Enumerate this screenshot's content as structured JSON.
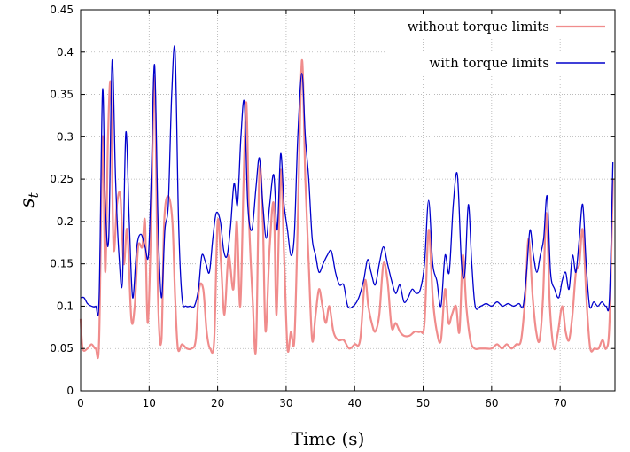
{
  "chart_data": {
    "type": "line",
    "title": "",
    "xlabel": "Time (s)",
    "ylabel": "s_t",
    "xlim": [
      0,
      78
    ],
    "ylim": [
      0,
      0.45
    ],
    "x_ticks": [
      0,
      10,
      20,
      30,
      40,
      50,
      60,
      70
    ],
    "y_ticks": [
      0,
      0.05,
      0.1,
      0.15,
      0.2,
      0.25,
      0.3,
      0.35,
      0.4,
      0.45
    ],
    "x_tick_labels": [
      "0",
      "10",
      "20",
      "30",
      "40",
      "50",
      "60",
      "70"
    ],
    "y_tick_labels": [
      "0",
      "0.05",
      "0.1",
      "0.15",
      "0.2",
      "0.25",
      "0.3",
      "0.35",
      "0.4",
      "0.45"
    ],
    "grid": true,
    "legend_position": "top-right",
    "series": [
      {
        "name": "without torque limits",
        "color": "#f08c8c",
        "points": [
          [
            0,
            0.085
          ],
          [
            0.3,
            0.05
          ],
          [
            1,
            0.05
          ],
          [
            1.6,
            0.055
          ],
          [
            2.2,
            0.05
          ],
          [
            2.7,
            0.06
          ],
          [
            3.2,
            0.3
          ],
          [
            3.6,
            0.14
          ],
          [
            4,
            0.3
          ],
          [
            4.4,
            0.36
          ],
          [
            4.8,
            0.17
          ],
          [
            5.3,
            0.22
          ],
          [
            5.8,
            0.23
          ],
          [
            6.3,
            0.15
          ],
          [
            6.8,
            0.19
          ],
          [
            7.4,
            0.085
          ],
          [
            7.9,
            0.1
          ],
          [
            8.4,
            0.17
          ],
          [
            9,
            0.17
          ],
          [
            9.4,
            0.2
          ],
          [
            9.8,
            0.08
          ],
          [
            10.3,
            0.2
          ],
          [
            10.8,
            0.37
          ],
          [
            11.3,
            0.11
          ],
          [
            11.8,
            0.06
          ],
          [
            12.2,
            0.2
          ],
          [
            12.8,
            0.23
          ],
          [
            13.4,
            0.2
          ],
          [
            13.8,
            0.11
          ],
          [
            14.2,
            0.05
          ],
          [
            14.8,
            0.055
          ],
          [
            15.5,
            0.05
          ],
          [
            16.2,
            0.05
          ],
          [
            16.8,
            0.06
          ],
          [
            17.3,
            0.12
          ],
          [
            17.9,
            0.12
          ],
          [
            18.4,
            0.07
          ],
          [
            18.9,
            0.05
          ],
          [
            19.5,
            0.06
          ],
          [
            20,
            0.2
          ],
          [
            20.5,
            0.15
          ],
          [
            21,
            0.09
          ],
          [
            21.6,
            0.16
          ],
          [
            22.3,
            0.12
          ],
          [
            22.8,
            0.2
          ],
          [
            23.3,
            0.1
          ],
          [
            23.8,
            0.25
          ],
          [
            24.2,
            0.34
          ],
          [
            24.6,
            0.2
          ],
          [
            25.1,
            0.11
          ],
          [
            25.6,
            0.05
          ],
          [
            26.1,
            0.26
          ],
          [
            26.6,
            0.2
          ],
          [
            27,
            0.07
          ],
          [
            27.6,
            0.17
          ],
          [
            28.2,
            0.22
          ],
          [
            28.6,
            0.09
          ],
          [
            29.2,
            0.26
          ],
          [
            29.7,
            0.16
          ],
          [
            30.2,
            0.05
          ],
          [
            30.7,
            0.07
          ],
          [
            31.2,
            0.06
          ],
          [
            31.7,
            0.2
          ],
          [
            32.3,
            0.39
          ],
          [
            32.8,
            0.25
          ],
          [
            33.3,
            0.15
          ],
          [
            33.8,
            0.06
          ],
          [
            34.3,
            0.09
          ],
          [
            34.8,
            0.12
          ],
          [
            35.3,
            0.1
          ],
          [
            35.8,
            0.08
          ],
          [
            36.3,
            0.1
          ],
          [
            36.9,
            0.07
          ],
          [
            37.6,
            0.06
          ],
          [
            38.4,
            0.06
          ],
          [
            39.2,
            0.05
          ],
          [
            40,
            0.055
          ],
          [
            40.8,
            0.06
          ],
          [
            41.5,
            0.13
          ],
          [
            42,
            0.1
          ],
          [
            42.5,
            0.08
          ],
          [
            43,
            0.07
          ],
          [
            43.6,
            0.09
          ],
          [
            44.2,
            0.15
          ],
          [
            44.8,
            0.13
          ],
          [
            45.4,
            0.075
          ],
          [
            46,
            0.08
          ],
          [
            46.6,
            0.07
          ],
          [
            47.2,
            0.065
          ],
          [
            48,
            0.065
          ],
          [
            48.8,
            0.07
          ],
          [
            49.6,
            0.07
          ],
          [
            50.2,
            0.08
          ],
          [
            50.8,
            0.19
          ],
          [
            51.4,
            0.11
          ],
          [
            52,
            0.07
          ],
          [
            52.6,
            0.06
          ],
          [
            53.2,
            0.12
          ],
          [
            53.7,
            0.08
          ],
          [
            54.2,
            0.09
          ],
          [
            54.8,
            0.1
          ],
          [
            55.3,
            0.07
          ],
          [
            55.8,
            0.16
          ],
          [
            56.3,
            0.1
          ],
          [
            56.9,
            0.06
          ],
          [
            57.5,
            0.05
          ],
          [
            58.3,
            0.05
          ],
          [
            59.1,
            0.05
          ],
          [
            60,
            0.05
          ],
          [
            60.8,
            0.055
          ],
          [
            61.5,
            0.05
          ],
          [
            62.2,
            0.055
          ],
          [
            62.9,
            0.05
          ],
          [
            63.6,
            0.055
          ],
          [
            64.3,
            0.06
          ],
          [
            64.9,
            0.11
          ],
          [
            65.4,
            0.18
          ],
          [
            66,
            0.11
          ],
          [
            66.5,
            0.07
          ],
          [
            67,
            0.06
          ],
          [
            67.5,
            0.11
          ],
          [
            68,
            0.21
          ],
          [
            68.5,
            0.1
          ],
          [
            69.1,
            0.05
          ],
          [
            69.7,
            0.07
          ],
          [
            70.3,
            0.1
          ],
          [
            70.8,
            0.07
          ],
          [
            71.3,
            0.06
          ],
          [
            71.8,
            0.09
          ],
          [
            72.3,
            0.14
          ],
          [
            72.8,
            0.15
          ],
          [
            73.3,
            0.19
          ],
          [
            73.9,
            0.1
          ],
          [
            74.4,
            0.05
          ],
          [
            75,
            0.05
          ],
          [
            75.6,
            0.05
          ],
          [
            76.2,
            0.06
          ],
          [
            76.7,
            0.05
          ],
          [
            77.2,
            0.08
          ],
          [
            77.7,
            0.25
          ]
        ]
      },
      {
        "name": "with torque limits",
        "color": "#0000cc",
        "points": [
          [
            0,
            0.11
          ],
          [
            0.5,
            0.11
          ],
          [
            1,
            0.103
          ],
          [
            1.6,
            0.1
          ],
          [
            2.2,
            0.1
          ],
          [
            2.7,
            0.11
          ],
          [
            3.2,
            0.355
          ],
          [
            3.6,
            0.22
          ],
          [
            4.1,
            0.18
          ],
          [
            4.6,
            0.39
          ],
          [
            5.1,
            0.25
          ],
          [
            5.6,
            0.16
          ],
          [
            6.1,
            0.13
          ],
          [
            6.6,
            0.305
          ],
          [
            7.1,
            0.2
          ],
          [
            7.6,
            0.11
          ],
          [
            8.2,
            0.17
          ],
          [
            8.8,
            0.185
          ],
          [
            9.4,
            0.17
          ],
          [
            9.9,
            0.16
          ],
          [
            10.3,
            0.25
          ],
          [
            10.8,
            0.385
          ],
          [
            11.3,
            0.2
          ],
          [
            11.8,
            0.11
          ],
          [
            12.3,
            0.19
          ],
          [
            12.8,
            0.22
          ],
          [
            13.3,
            0.35
          ],
          [
            13.8,
            0.4
          ],
          [
            14.3,
            0.2
          ],
          [
            14.8,
            0.11
          ],
          [
            15.4,
            0.1
          ],
          [
            16,
            0.1
          ],
          [
            16.6,
            0.1
          ],
          [
            17.2,
            0.12
          ],
          [
            17.7,
            0.16
          ],
          [
            18.3,
            0.15
          ],
          [
            18.8,
            0.14
          ],
          [
            19.3,
            0.18
          ],
          [
            19.8,
            0.21
          ],
          [
            20.4,
            0.2
          ],
          [
            20.9,
            0.165
          ],
          [
            21.4,
            0.16
          ],
          [
            21.9,
            0.195
          ],
          [
            22.4,
            0.245
          ],
          [
            22.9,
            0.22
          ],
          [
            23.4,
            0.3
          ],
          [
            23.9,
            0.34
          ],
          [
            24.4,
            0.22
          ],
          [
            25,
            0.19
          ],
          [
            25.6,
            0.24
          ],
          [
            26.1,
            0.275
          ],
          [
            26.6,
            0.22
          ],
          [
            27.1,
            0.18
          ],
          [
            27.6,
            0.22
          ],
          [
            28.2,
            0.255
          ],
          [
            28.7,
            0.19
          ],
          [
            29.2,
            0.28
          ],
          [
            29.7,
            0.22
          ],
          [
            30.2,
            0.19
          ],
          [
            30.7,
            0.16
          ],
          [
            31.2,
            0.185
          ],
          [
            31.7,
            0.3
          ],
          [
            32.3,
            0.375
          ],
          [
            32.8,
            0.3
          ],
          [
            33.3,
            0.25
          ],
          [
            33.8,
            0.18
          ],
          [
            34.3,
            0.16
          ],
          [
            34.8,
            0.14
          ],
          [
            35.4,
            0.15
          ],
          [
            36,
            0.16
          ],
          [
            36.6,
            0.165
          ],
          [
            37.2,
            0.14
          ],
          [
            37.8,
            0.125
          ],
          [
            38.4,
            0.125
          ],
          [
            39,
            0.1
          ],
          [
            39.8,
            0.1
          ],
          [
            40.6,
            0.11
          ],
          [
            41.3,
            0.13
          ],
          [
            41.9,
            0.155
          ],
          [
            42.4,
            0.14
          ],
          [
            43,
            0.125
          ],
          [
            43.6,
            0.15
          ],
          [
            44.2,
            0.17
          ],
          [
            44.8,
            0.15
          ],
          [
            45.4,
            0.13
          ],
          [
            46,
            0.115
          ],
          [
            46.6,
            0.125
          ],
          [
            47.2,
            0.105
          ],
          [
            47.8,
            0.11
          ],
          [
            48.4,
            0.12
          ],
          [
            49,
            0.115
          ],
          [
            49.6,
            0.12
          ],
          [
            50.2,
            0.15
          ],
          [
            50.8,
            0.225
          ],
          [
            51.4,
            0.15
          ],
          [
            52,
            0.13
          ],
          [
            52.6,
            0.1
          ],
          [
            53.2,
            0.16
          ],
          [
            53.8,
            0.14
          ],
          [
            54.4,
            0.22
          ],
          [
            55,
            0.255
          ],
          [
            55.6,
            0.15
          ],
          [
            56.1,
            0.14
          ],
          [
            56.6,
            0.22
          ],
          [
            57.1,
            0.15
          ],
          [
            57.6,
            0.1
          ],
          [
            58.4,
            0.1
          ],
          [
            59.2,
            0.103
          ],
          [
            60,
            0.1
          ],
          [
            60.8,
            0.105
          ],
          [
            61.6,
            0.1
          ],
          [
            62.4,
            0.103
          ],
          [
            63.2,
            0.1
          ],
          [
            64,
            0.103
          ],
          [
            64.6,
            0.1
          ],
          [
            65.1,
            0.14
          ],
          [
            65.6,
            0.19
          ],
          [
            66.1,
            0.16
          ],
          [
            66.6,
            0.14
          ],
          [
            67.1,
            0.16
          ],
          [
            67.6,
            0.18
          ],
          [
            68.1,
            0.23
          ],
          [
            68.6,
            0.14
          ],
          [
            69.2,
            0.12
          ],
          [
            69.8,
            0.11
          ],
          [
            70.3,
            0.13
          ],
          [
            70.8,
            0.14
          ],
          [
            71.3,
            0.12
          ],
          [
            71.8,
            0.16
          ],
          [
            72.3,
            0.14
          ],
          [
            72.8,
            0.18
          ],
          [
            73.3,
            0.22
          ],
          [
            73.8,
            0.15
          ],
          [
            74.3,
            0.1
          ],
          [
            74.9,
            0.105
          ],
          [
            75.5,
            0.1
          ],
          [
            76.1,
            0.105
          ],
          [
            76.7,
            0.1
          ],
          [
            77.2,
            0.11
          ],
          [
            77.7,
            0.27
          ]
        ]
      }
    ]
  }
}
